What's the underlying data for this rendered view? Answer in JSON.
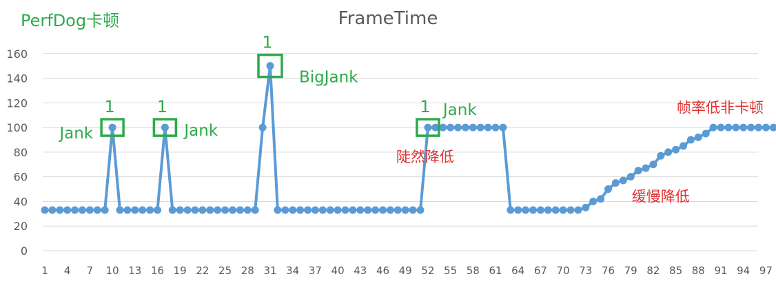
{
  "header": {
    "left_title": "PerfDog卡顿"
  },
  "colors": {
    "series": "#5b9bd5",
    "annotation_green": "#2eaa4a",
    "annotation_red": "#e03131",
    "grid": "#d9d9d9",
    "axis_text": "#595959"
  },
  "chart_data": {
    "type": "line",
    "title": "FrameTime",
    "xlabel": "",
    "ylabel": "",
    "ylim": [
      0,
      160
    ],
    "yticks": [
      0,
      20,
      40,
      60,
      80,
      100,
      120,
      140,
      160
    ],
    "xticks": [
      1,
      4,
      7,
      10,
      13,
      16,
      19,
      22,
      25,
      28,
      31,
      34,
      37,
      40,
      43,
      46,
      49,
      52,
      55,
      58,
      61,
      64,
      67,
      70,
      73,
      76,
      79,
      82,
      85,
      88,
      91,
      94,
      97
    ],
    "grid": true,
    "legend": "none",
    "x": [
      1,
      2,
      3,
      4,
      5,
      6,
      7,
      8,
      9,
      10,
      11,
      12,
      13,
      14,
      15,
      16,
      17,
      18,
      19,
      20,
      21,
      22,
      23,
      24,
      25,
      26,
      27,
      28,
      29,
      30,
      31,
      32,
      33,
      34,
      35,
      36,
      37,
      38,
      39,
      40,
      41,
      42,
      43,
      44,
      45,
      46,
      47,
      48,
      49,
      50,
      51,
      52,
      53,
      54,
      55,
      56,
      57,
      58,
      59,
      60,
      61,
      62,
      63,
      64,
      65,
      66,
      67,
      68,
      69,
      70,
      71,
      72,
      73,
      74,
      75,
      76,
      77,
      78,
      79,
      80,
      81,
      82,
      83,
      84,
      85,
      86,
      87,
      88,
      89,
      90,
      91,
      92,
      93,
      94,
      95,
      96,
      97,
      98
    ],
    "series": [
      {
        "values": [
          33,
          33,
          33,
          33,
          33,
          33,
          33,
          33,
          33,
          100,
          33,
          33,
          33,
          33,
          33,
          33,
          100,
          33,
          33,
          33,
          33,
          33,
          33,
          33,
          33,
          33,
          33,
          33,
          33,
          100,
          150,
          33,
          33,
          33,
          33,
          33,
          33,
          33,
          33,
          33,
          33,
          33,
          33,
          33,
          33,
          33,
          33,
          33,
          33,
          33,
          33,
          100,
          100,
          100,
          100,
          100,
          100,
          100,
          100,
          100,
          100,
          100,
          33,
          33,
          33,
          33,
          33,
          33,
          33,
          33,
          33,
          33,
          35,
          40,
          42,
          50,
          55,
          57,
          60,
          65,
          67,
          70,
          77,
          80,
          82,
          85,
          90,
          92,
          95,
          100,
          100,
          100,
          100,
          100,
          100,
          100,
          100,
          100
        ]
      }
    ],
    "annotations": [
      {
        "text": "Jank",
        "x": 10,
        "y": 100,
        "kind": "box",
        "color": "green",
        "count": "1"
      },
      {
        "text": "Jank",
        "x": 17,
        "y": 100,
        "kind": "box",
        "color": "green",
        "count": "1"
      },
      {
        "text": "BigJank",
        "x": 31,
        "y": 150,
        "kind": "box",
        "color": "green",
        "count": "1"
      },
      {
        "text": "Jank",
        "x": 52,
        "y": 100,
        "kind": "box",
        "color": "green",
        "count": "1"
      },
      {
        "text": "陡然降低",
        "x": 52,
        "y": 72,
        "kind": "text",
        "color": "red"
      },
      {
        "text": "缓慢降低",
        "x": 83,
        "y": 40,
        "kind": "text",
        "color": "red"
      },
      {
        "text": "帧率低非卡顿",
        "x": 91,
        "y": 112,
        "kind": "text",
        "color": "red"
      }
    ]
  }
}
